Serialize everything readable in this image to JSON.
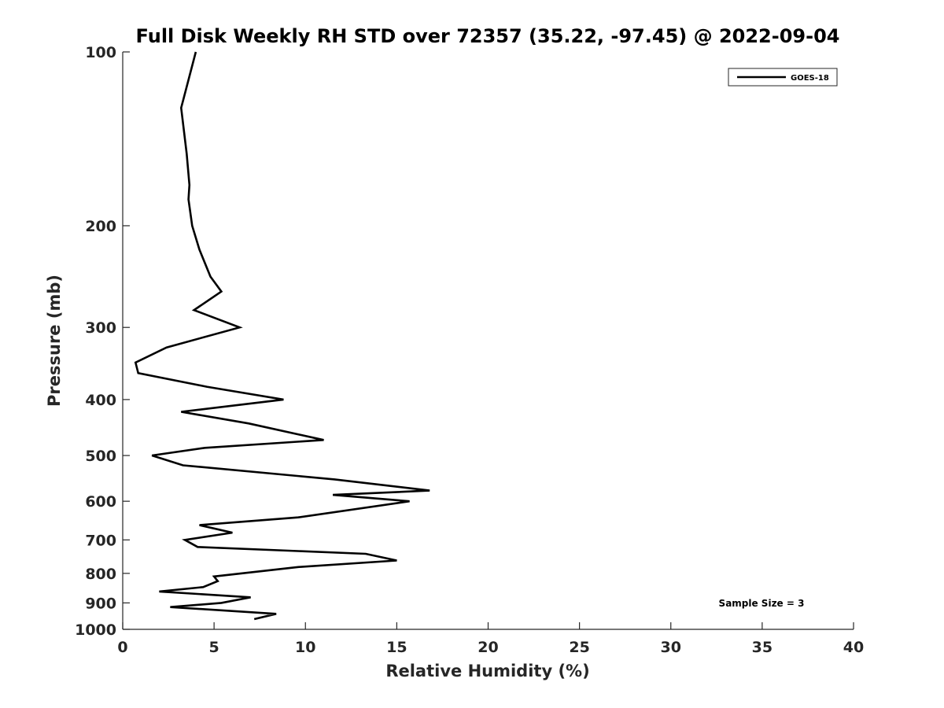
{
  "chart_data": {
    "type": "line",
    "title": "Full Disk Weekly RH STD over 72357 (35.22, -97.45) @ 2022-09-04",
    "xlabel": "Relative Humidity (%)",
    "ylabel": "Pressure (mb)",
    "xlim": [
      0,
      40
    ],
    "ylim": [
      100,
      1000
    ],
    "y_scale": "log",
    "y_reversed": true,
    "grid": false,
    "x_ticks": [
      0,
      5,
      10,
      15,
      20,
      25,
      30,
      35,
      40
    ],
    "y_ticks": [
      100,
      200,
      300,
      400,
      500,
      600,
      700,
      800,
      900,
      1000
    ],
    "legend": {
      "position": "top-right",
      "entries": [
        "GOES-18"
      ]
    },
    "annotation": "Sample Size = 3",
    "series": [
      {
        "name": "GOES-18",
        "color": "#000000",
        "points": [
          [
            4.0,
            100
          ],
          [
            3.2,
            125
          ],
          [
            3.5,
            150
          ],
          [
            3.65,
            170
          ],
          [
            3.6,
            180
          ],
          [
            3.8,
            200
          ],
          [
            4.2,
            220
          ],
          [
            4.8,
            245
          ],
          [
            5.4,
            260
          ],
          [
            3.9,
            280
          ],
          [
            6.4,
            300
          ],
          [
            2.4,
            325
          ],
          [
            0.7,
            345
          ],
          [
            0.85,
            360
          ],
          [
            4.6,
            380
          ],
          [
            8.8,
            400
          ],
          [
            3.2,
            420
          ],
          [
            6.9,
            440
          ],
          [
            11.0,
            470
          ],
          [
            4.5,
            485
          ],
          [
            1.6,
            500
          ],
          [
            3.3,
            520
          ],
          [
            11.6,
            550
          ],
          [
            16.8,
            575
          ],
          [
            11.5,
            585
          ],
          [
            15.7,
            600
          ],
          [
            9.6,
            640
          ],
          [
            4.2,
            660
          ],
          [
            6.0,
            680
          ],
          [
            3.4,
            700
          ],
          [
            4.1,
            720
          ],
          [
            13.3,
            740
          ],
          [
            15.0,
            760
          ],
          [
            9.6,
            780
          ],
          [
            5.0,
            810
          ],
          [
            5.2,
            825
          ],
          [
            4.4,
            845
          ],
          [
            2.0,
            860
          ],
          [
            7.0,
            880
          ],
          [
            5.4,
            900
          ],
          [
            2.6,
            915
          ],
          [
            8.4,
            940
          ],
          [
            7.2,
            960
          ]
        ]
      }
    ]
  }
}
